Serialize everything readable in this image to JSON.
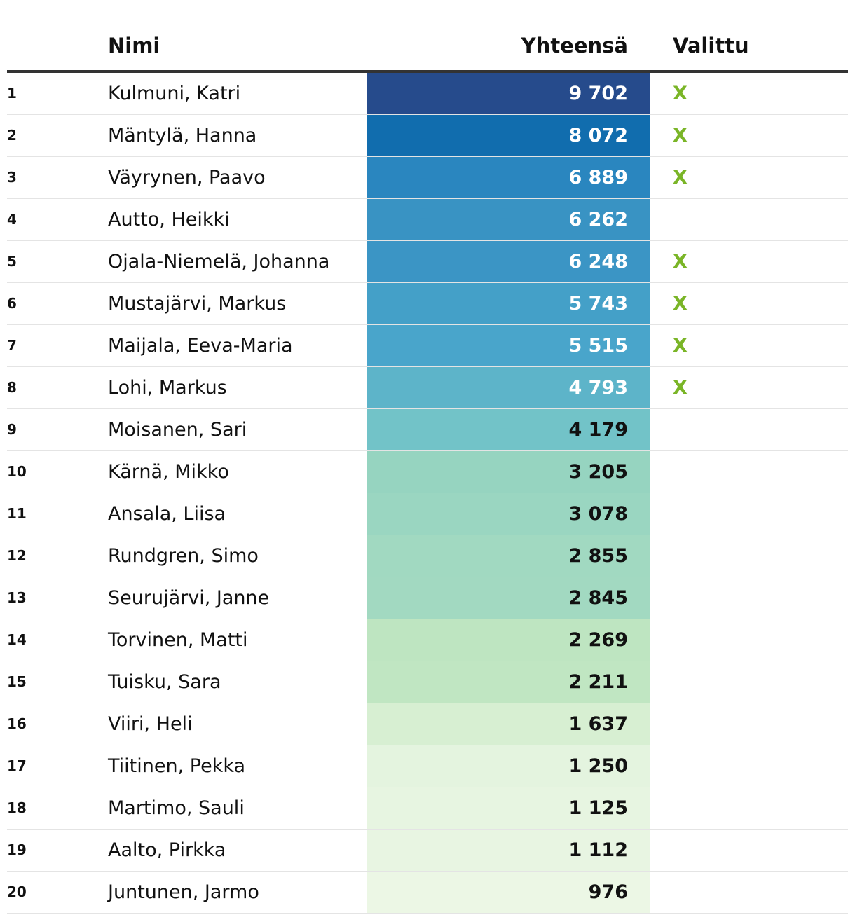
{
  "headers": {
    "rank": "",
    "name": "Nimi",
    "total": "Yhteensä",
    "selected": "Valittu"
  },
  "chart_data": {
    "type": "table",
    "columns": [
      "",
      "Nimi",
      "Yhteensä",
      "Valittu"
    ],
    "rows": [
      {
        "rank": "1",
        "name": "Kulmuni, Katri",
        "value": 9702,
        "label": "9 702",
        "selected": "X",
        "color": "#264b8c",
        "text_color": "#ffffff"
      },
      {
        "rank": "2",
        "name": "Mäntylä, Hanna",
        "value": 8072,
        "label": "8 072",
        "selected": "X",
        "color": "#116dae",
        "text_color": "#ffffff"
      },
      {
        "rank": "3",
        "name": "Väyrynen, Paavo",
        "value": 6889,
        "label": "6 889",
        "selected": "X",
        "color": "#2a86bf",
        "text_color": "#ffffff"
      },
      {
        "rank": "4",
        "name": "Autto, Heikki",
        "value": 6262,
        "label": "6 262",
        "selected": "",
        "color": "#3993c3",
        "text_color": "#ffffff"
      },
      {
        "rank": "5",
        "name": "Ojala-Niemelä, Johanna",
        "value": 6248,
        "label": "6 248",
        "selected": "X",
        "color": "#3b95c5",
        "text_color": "#ffffff"
      },
      {
        "rank": "6",
        "name": "Mustajärvi, Markus",
        "value": 5743,
        "label": "5 743",
        "selected": "X",
        "color": "#44a0c8",
        "text_color": "#ffffff"
      },
      {
        "rank": "7",
        "name": "Maijala, Eeva-Maria",
        "value": 5515,
        "label": "5 515",
        "selected": "X",
        "color": "#49a5cb",
        "text_color": "#ffffff"
      },
      {
        "rank": "8",
        "name": "Lohi, Markus",
        "value": 4793,
        "label": "4 793",
        "selected": "X",
        "color": "#5db4c9",
        "text_color": "#ffffff"
      },
      {
        "rank": "9",
        "name": "Moisanen, Sari",
        "value": 4179,
        "label": "4 179",
        "selected": "",
        "color": "#72c3c8",
        "text_color": "#111111"
      },
      {
        "rank": "10",
        "name": "Kärnä, Mikko",
        "value": 3205,
        "label": "3 205",
        "selected": "",
        "color": "#96d4c0",
        "text_color": "#111111"
      },
      {
        "rank": "11",
        "name": "Ansala, Liisa",
        "value": 3078,
        "label": "3 078",
        "selected": "",
        "color": "#9ad6c1",
        "text_color": "#111111"
      },
      {
        "rank": "12",
        "name": "Rundgren, Simo",
        "value": 2855,
        "label": "2 855",
        "selected": "",
        "color": "#a1d9c1",
        "text_color": "#111111"
      },
      {
        "rank": "13",
        "name": "Seurujärvi, Janne",
        "value": 2845,
        "label": "2 845",
        "selected": "",
        "color": "#a2d9c1",
        "text_color": "#111111"
      },
      {
        "rank": "14",
        "name": "Torvinen, Matti",
        "value": 2269,
        "label": "2 269",
        "selected": "",
        "color": "#bee5c1",
        "text_color": "#111111"
      },
      {
        "rank": "15",
        "name": "Tuisku, Sara",
        "value": 2211,
        "label": "2 211",
        "selected": "",
        "color": "#c0e6c2",
        "text_color": "#111111"
      },
      {
        "rank": "16",
        "name": "Viiri, Heli",
        "value": 1637,
        "label": "1 637",
        "selected": "",
        "color": "#d7efd2",
        "text_color": "#111111"
      },
      {
        "rank": "17",
        "name": "Tiitinen, Pekka",
        "value": 1250,
        "label": "1 250",
        "selected": "",
        "color": "#e4f4df",
        "text_color": "#111111"
      },
      {
        "rank": "18",
        "name": "Martimo, Sauli",
        "value": 1125,
        "label": "1 125",
        "selected": "",
        "color": "#e7f5e1",
        "text_color": "#111111"
      },
      {
        "rank": "19",
        "name": "Aalto, Pirkka",
        "value": 1112,
        "label": "1 112",
        "selected": "",
        "color": "#e8f5e2",
        "text_color": "#111111"
      },
      {
        "rank": "20",
        "name": "Juntunen, Jarmo",
        "value": 976,
        "label": "976",
        "selected": "",
        "color": "#ecf7e5",
        "text_color": "#111111"
      }
    ]
  }
}
